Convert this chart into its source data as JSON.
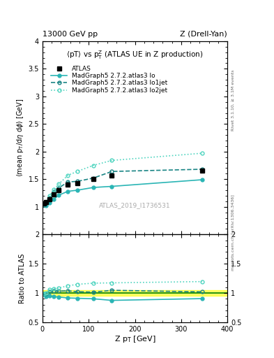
{
  "title_left": "13000 GeV pp",
  "title_right": "Z (Drell-Yan)",
  "main_subtitle": "<pT> vs p$_{T}^{Z}$ (ATLAS UE in Z production)",
  "ylabel_main": "<mean p$_{T}$/dη dφ> [GeV]",
  "ylabel_ratio": "Ratio to ATLAS",
  "xlabel": "Z p$_{T}$ [GeV]",
  "watermark": "ATLAS_2019_I1736531",
  "right_label_top": "Rivet 3.1.10, ≥ 3.1M events",
  "right_label_bot": "mcplots.cern.ch [arXiv:1306.3436]",
  "atlas_x": [
    2.5,
    7.5,
    15,
    25,
    35,
    55,
    75,
    110,
    150,
    345
  ],
  "atlas_y": [
    1.065,
    1.085,
    1.13,
    1.22,
    1.3,
    1.4,
    1.43,
    1.5,
    1.57,
    1.65
  ],
  "lo_x": [
    2.5,
    7.5,
    15,
    25,
    35,
    55,
    75,
    110,
    150,
    345
  ],
  "lo_y": [
    1.04,
    1.02,
    1.07,
    1.14,
    1.21,
    1.28,
    1.3,
    1.35,
    1.37,
    1.49
  ],
  "lo1jet_x": [
    2.5,
    7.5,
    15,
    25,
    35,
    55,
    75,
    110,
    150,
    345
  ],
  "lo1jet_y": [
    1.05,
    1.07,
    1.16,
    1.27,
    1.34,
    1.45,
    1.46,
    1.52,
    1.64,
    1.68
  ],
  "lo2jet_x": [
    2.5,
    7.5,
    15,
    25,
    35,
    55,
    75,
    110,
    150,
    345
  ],
  "lo2jet_y": [
    1.05,
    1.08,
    1.2,
    1.31,
    1.41,
    1.57,
    1.64,
    1.75,
    1.84,
    1.97
  ],
  "ratio_lo_y": [
    0.977,
    0.94,
    0.947,
    0.934,
    0.931,
    0.914,
    0.909,
    0.9,
    0.873,
    0.903
  ],
  "ratio_lo1jet_y": [
    0.986,
    0.986,
    1.027,
    1.041,
    1.031,
    1.036,
    1.021,
    1.013,
    1.045,
    1.018
  ],
  "ratio_lo2jet_y": [
    0.986,
    0.996,
    1.062,
    1.074,
    1.085,
    1.121,
    1.147,
    1.167,
    1.172,
    1.194
  ],
  "color_lo": "#2ab5b5",
  "color_lo1jet": "#1a8585",
  "color_lo2jet": "#50d5c0",
  "ylim_main": [
    0.5,
    4.0
  ],
  "ylim_ratio": [
    0.5,
    2.0
  ],
  "xlim": [
    0,
    400
  ]
}
